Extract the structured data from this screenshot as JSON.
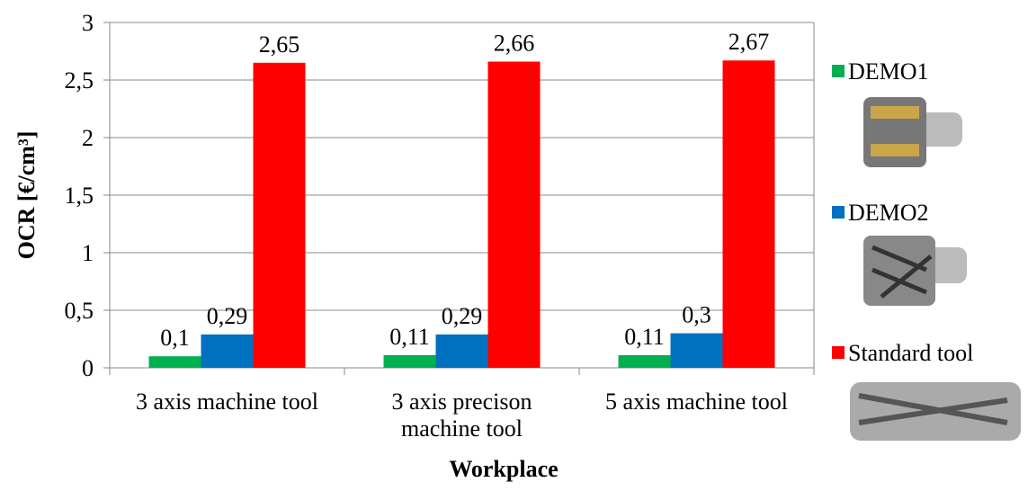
{
  "chart_data": {
    "type": "bar",
    "x_label": "Workplace",
    "y_label": "OCR [€/cm³]",
    "categories": [
      "3 axis machine tool",
      "3 axis precison machine tool",
      "5 axis machine tool"
    ],
    "series": [
      {
        "name": "DEMO1",
        "color": "#00b050",
        "values": [
          0.1,
          0.11,
          0.11
        ],
        "value_labels": [
          "0,1",
          "0,11",
          "0,11"
        ]
      },
      {
        "name": "DEMO2",
        "color": "#0070c0",
        "values": [
          0.29,
          0.29,
          0.3
        ],
        "value_labels": [
          "0,29",
          "0,29",
          "0,3"
        ]
      },
      {
        "name": "Standard tool",
        "color": "#ff0000",
        "values": [
          2.65,
          2.66,
          2.67
        ],
        "value_labels": [
          "2,65",
          "2,66",
          "2,67"
        ]
      }
    ],
    "ylim": [
      0,
      3
    ],
    "yticks": [
      0,
      {
        "value": 0.5,
        "label": "0,5"
      },
      1,
      {
        "value": 1.5,
        "label": "1,5"
      },
      2,
      {
        "value": 2.5,
        "label": "2,5"
      },
      3
    ],
    "grid": true
  }
}
